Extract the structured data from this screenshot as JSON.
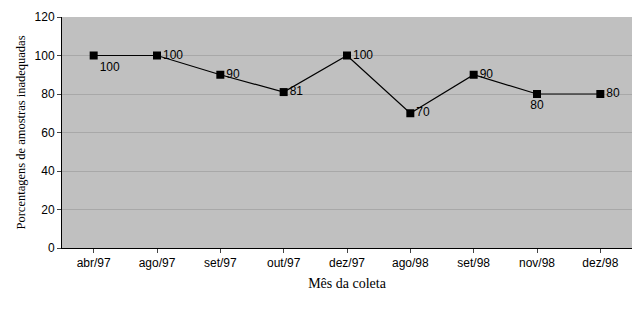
{
  "chart_data": {
    "type": "line",
    "x_label": "Mês da coleta",
    "y_label": "Porcentagens de amostras inadequadas",
    "categories": [
      "abr/97",
      "ago/97",
      "set/97",
      "out/97",
      "dez/97",
      "ago/98",
      "set/98",
      "nov/98",
      "dez/98"
    ],
    "values": [
      100,
      100,
      90,
      81,
      100,
      70,
      90,
      80,
      80
    ],
    "color": "#000000",
    "marker": "square",
    "line_style": "solid",
    "data_labels": true,
    "ylim": [
      0,
      120
    ],
    "yticks": [
      0,
      20,
      40,
      60,
      80,
      100,
      120
    ],
    "grid": true
  }
}
